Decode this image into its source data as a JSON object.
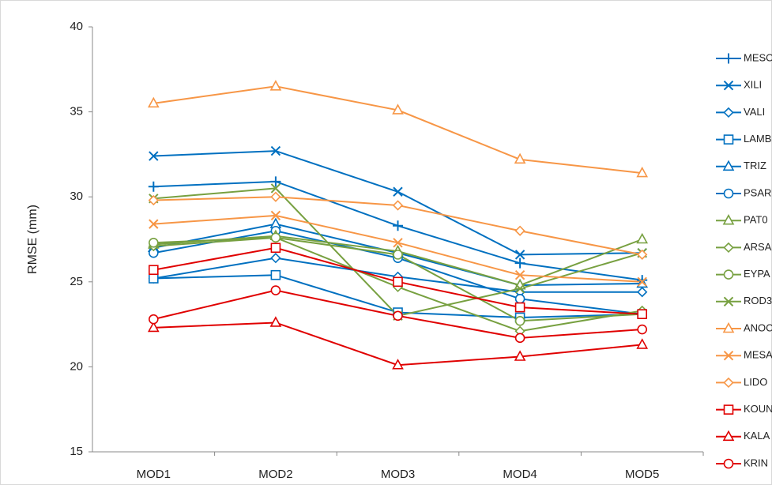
{
  "chart_data": {
    "type": "line",
    "y_label": "RMSE (mm)",
    "categories": [
      "MOD1",
      "MOD2",
      "MOD3",
      "MOD4",
      "MOD5"
    ],
    "ylim": [
      15,
      40
    ],
    "yticks": [
      15,
      20,
      25,
      30,
      35,
      40
    ],
    "series": [
      {
        "name": "MESO",
        "color": "#0070c0",
        "marker": "plus",
        "values": [
          30.6,
          30.9,
          28.3,
          26.1,
          25.1
        ]
      },
      {
        "name": "XILI",
        "color": "#0070c0",
        "marker": "x",
        "values": [
          32.4,
          32.7,
          30.3,
          26.6,
          26.7
        ]
      },
      {
        "name": "VALI",
        "color": "#0070c0",
        "marker": "diamond",
        "values": [
          25.2,
          26.4,
          25.3,
          24.4,
          24.4
        ]
      },
      {
        "name": "LAMB",
        "color": "#0070c0",
        "marker": "square",
        "values": [
          25.2,
          25.4,
          23.2,
          22.9,
          23.1
        ]
      },
      {
        "name": "TRIZ",
        "color": "#0070c0",
        "marker": "triangle",
        "values": [
          27.0,
          28.4,
          26.7,
          24.8,
          24.9
        ]
      },
      {
        "name": "PSAR",
        "color": "#0070c0",
        "marker": "circle",
        "values": [
          26.7,
          28.0,
          26.4,
          24.0,
          23.1
        ]
      },
      {
        "name": "PAT0",
        "color": "#77a040",
        "marker": "triangle",
        "values": [
          27.2,
          27.7,
          26.8,
          24.8,
          27.5
        ]
      },
      {
        "name": "ARSA",
        "color": "#77a040",
        "marker": "diamond",
        "values": [
          27.1,
          27.6,
          24.7,
          22.1,
          23.3
        ]
      },
      {
        "name": "EYPA",
        "color": "#77a040",
        "marker": "circle",
        "values": [
          27.3,
          27.6,
          26.6,
          22.7,
          23.1
        ]
      },
      {
        "name": "ROD3",
        "color": "#77a040",
        "marker": "x",
        "values": [
          29.9,
          30.5,
          23.0,
          24.6,
          26.7
        ]
      },
      {
        "name": "ANOC",
        "color": "#f79646",
        "marker": "triangle",
        "values": [
          35.5,
          36.5,
          35.1,
          32.2,
          31.4
        ]
      },
      {
        "name": "MESA",
        "color": "#f79646",
        "marker": "x",
        "values": [
          28.4,
          28.9,
          27.3,
          25.4,
          25.0
        ]
      },
      {
        "name": "LIDO",
        "color": "#f79646",
        "marker": "diamond",
        "values": [
          29.8,
          30.0,
          29.5,
          28.0,
          26.6
        ]
      },
      {
        "name": "KOUN",
        "color": "#e00000",
        "marker": "square",
        "values": [
          25.7,
          27.0,
          25.0,
          23.5,
          23.1
        ]
      },
      {
        "name": "KALA",
        "color": "#e00000",
        "marker": "triangle",
        "values": [
          22.3,
          22.6,
          20.1,
          20.6,
          21.3
        ]
      },
      {
        "name": "KRIN",
        "color": "#e00000",
        "marker": "circle",
        "values": [
          22.8,
          24.5,
          23.0,
          21.7,
          22.2
        ]
      }
    ]
  }
}
